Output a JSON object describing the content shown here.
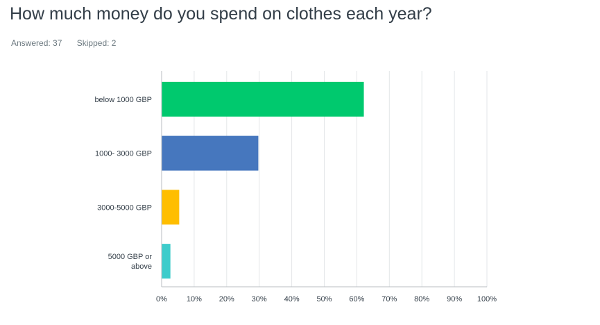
{
  "question": {
    "title": "How much money do you spend on clothes each year?",
    "answered_label": "Answered:",
    "answered_count": "37",
    "skipped_label": "Skipped:",
    "skipped_count": "2"
  },
  "colors": {
    "title": "#333e48",
    "meta": "#6b787f",
    "grid": "#e3e6e8",
    "axis": "#b8bec2",
    "bar_colors": [
      "#00c96e",
      "#4677be",
      "#ffbe00",
      "#3dcccb"
    ]
  },
  "chart_data": {
    "type": "bar",
    "orientation": "horizontal",
    "categories": [
      "below 1000 GBP",
      "1000- 3000 GBP",
      "3000-5000 GBP",
      "5000 GBP or above"
    ],
    "category_lines": [
      [
        "below 1000 GBP"
      ],
      [
        "1000- 3000 GBP"
      ],
      [
        "3000-5000 GBP"
      ],
      [
        "5000 GBP or",
        "above"
      ]
    ],
    "values": [
      62.16,
      29.73,
      5.41,
      2.7
    ],
    "value_unit": "%",
    "xlim": [
      0,
      100
    ],
    "x_ticks": [
      "0%",
      "10%",
      "20%",
      "30%",
      "40%",
      "50%",
      "60%",
      "70%",
      "80%",
      "90%",
      "100%"
    ],
    "grid": true,
    "legend": "none"
  }
}
